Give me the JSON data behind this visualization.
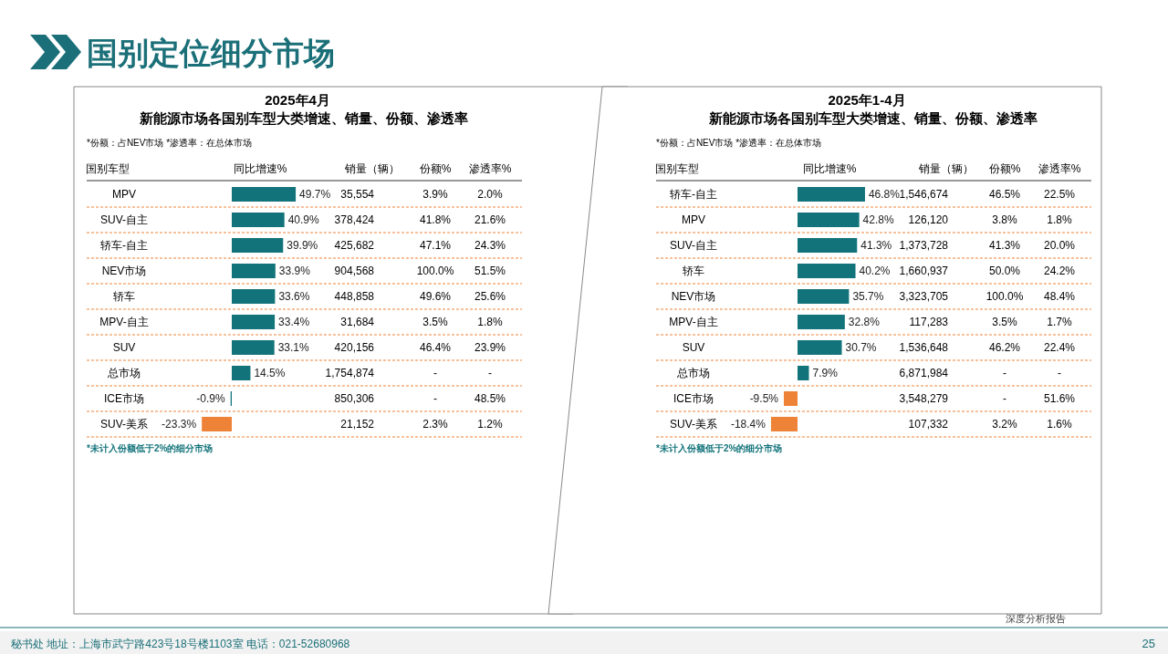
{
  "chart_data": [
    {
      "type": "bar",
      "orientation": "horizontal",
      "title": "2025年4月",
      "subtitle": "新能源市场各国别车型大类增速、销量、份额、渗透率",
      "categories": [
        "MPV",
        "SUV-自主",
        "轿车-自主",
        "NEV市场",
        "轿车",
        "MPV-自主",
        "SUV",
        "总市场",
        "ICE市场",
        "SUV-美系"
      ],
      "values": [
        49.7,
        40.9,
        39.9,
        33.9,
        33.6,
        33.4,
        33.1,
        14.5,
        -0.9,
        -23.3
      ],
      "colors": [
        "#12737a",
        "#12737a",
        "#12737a",
        "#12737a",
        "#12737a",
        "#12737a",
        "#12737a",
        "#12737a",
        "#12737a",
        "#ee8338"
      ],
      "value_labels": [
        "49.7%",
        "40.9%",
        "39.9%",
        "33.9%",
        "33.6%",
        "33.4%",
        "33.1%",
        "14.5%",
        "-0.9%",
        "-23.3%"
      ],
      "annotations": [
        "*份额：占NEV市场   *渗透率：在总体市场",
        "国别车型",
        "同比增速%",
        "销量（辆）",
        "份额%",
        "渗透率%",
        "*未计入份额低于2%的细分市场",
        "国别定位细分市场",
        "秘书处   地址：上海市武宁路423号18号楼1103室   电话：021-52680968",
        "深度分析报告",
        "25",
        "35,554",
        "3.9%",
        "2.0%",
        "378,424",
        "41.8%",
        "21.6%",
        "425,682",
        "47.1%",
        "24.3%",
        "904,568",
        "100.0%",
        "51.5%",
        "448,858",
        "49.6%",
        "25.6%",
        "31,684",
        "3.5%",
        "1.8%",
        "420,156",
        "46.4%",
        "23.9%",
        "1,754,874",
        "-",
        "-",
        "850,306",
        "-",
        "48.5%",
        "21,152",
        "2.3%",
        "1.2%"
      ]
    },
    {
      "type": "bar",
      "orientation": "horizontal",
      "title": "2025年1-4月",
      "subtitle": "新能源市场各国别车型大类增速、销量、份额、渗透率",
      "categories": [
        "轿车-自主",
        "MPV",
        "SUV-自主",
        "轿车",
        "NEV市场",
        "MPV-自主",
        "SUV",
        "总市场",
        "ICE市场",
        "SUV-美系"
      ],
      "values": [
        46.8,
        42.8,
        41.3,
        40.2,
        35.7,
        32.8,
        30.7,
        7.9,
        -9.5,
        -18.4
      ],
      "colors": [
        "#12737a",
        "#12737a",
        "#12737a",
        "#12737a",
        "#12737a",
        "#12737a",
        "#12737a",
        "#12737a",
        "#ee8338",
        "#ee8338"
      ],
      "value_labels": [
        "46.8%",
        "42.8%",
        "41.3%",
        "40.2%",
        "35.7%",
        "32.8%",
        "30.7%",
        "7.9%",
        "-9.5%",
        "-18.4%"
      ],
      "annotations": [
        "*份额：占NEV市场   *渗透率：在总体市场",
        "国别车型",
        "同比增速%",
        "销量（辆）",
        "份额%",
        "渗透率%",
        "*未计入份额低于2%的细分市场",
        "1,546,674",
        "46.5%",
        "22.5%",
        "126,120",
        "3.8%",
        "1.8%",
        "1,373,728",
        "41.3%",
        "20.0%",
        "1,660,937",
        "50.0%",
        "24.2%",
        "3,323,705",
        "100.0%",
        "48.4%",
        "117,283",
        "3.5%",
        "1.7%",
        "1,536,648",
        "46.2%",
        "22.4%",
        "6,871,984",
        "-",
        "-",
        "3,548,279",
        "-",
        "51.6%",
        "107,332",
        "3.2%",
        "1.6%"
      ]
    }
  ]
}
